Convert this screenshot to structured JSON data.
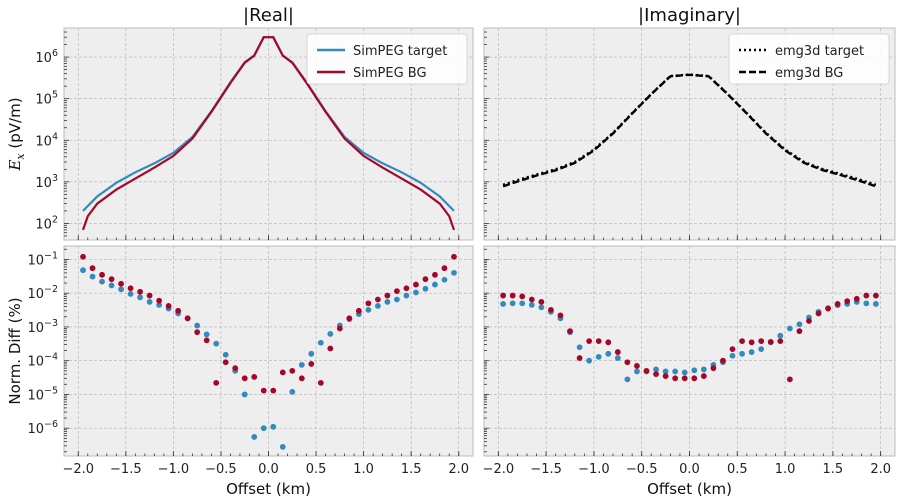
{
  "chart_data": [
    {
      "type": "line",
      "panel": "top-left",
      "title": "|Real|",
      "ylabel": "E_x (pV/m)",
      "xlabel": "",
      "yscale": "log",
      "xlim": [
        -2.15,
        2.15
      ],
      "ylim": [
        40,
        5000000
      ],
      "xticks": [
        -2.0,
        -1.5,
        -1.0,
        -0.5,
        0.0,
        0.5,
        1.0,
        1.5,
        2.0
      ],
      "yticks": [
        100,
        1000,
        10000,
        100000,
        1000000
      ],
      "ytick_labels": [
        "10^2",
        "10^3",
        "10^4",
        "10^5",
        "10^6"
      ],
      "grid": true,
      "legend": "top-right",
      "series": [
        {
          "name": "SimPEG target",
          "color": "#348abd",
          "style": "solid",
          "x": [
            -1.95,
            -1.8,
            -1.6,
            -1.4,
            -1.2,
            -1.0,
            -0.8,
            -0.6,
            -0.4,
            -0.25,
            -0.15,
            -0.05,
            0.0,
            0.05,
            0.15,
            0.25,
            0.4,
            0.6,
            0.8,
            1.0,
            1.2,
            1.4,
            1.6,
            1.8,
            1.95
          ],
          "y": [
            200,
            450,
            950,
            1700,
            2800,
            5000,
            12000,
            50000,
            250000,
            750000,
            1100000,
            3000000,
            3000000,
            3000000,
            1100000,
            750000,
            250000,
            50000,
            12000,
            5000,
            2800,
            1700,
            950,
            450,
            200
          ]
        },
        {
          "name": "SimPEG BG",
          "color": "#a60628",
          "style": "solid",
          "x": [
            -1.95,
            -1.9,
            -1.8,
            -1.6,
            -1.4,
            -1.2,
            -1.0,
            -0.8,
            -0.6,
            -0.4,
            -0.25,
            -0.15,
            -0.05,
            0.0,
            0.05,
            0.15,
            0.25,
            0.4,
            0.6,
            0.8,
            1.0,
            1.2,
            1.4,
            1.6,
            1.8,
            1.9,
            1.95
          ],
          "y": [
            70,
            150,
            300,
            650,
            1200,
            2200,
            4200,
            11000,
            48000,
            240000,
            730000,
            1080000,
            3000000,
            3000000,
            3000000,
            1080000,
            730000,
            240000,
            48000,
            11000,
            4200,
            2200,
            1200,
            650,
            300,
            150,
            70
          ]
        }
      ]
    },
    {
      "type": "line",
      "panel": "top-right",
      "title": "|Imaginary|",
      "ylabel": "",
      "xlabel": "",
      "yscale": "log",
      "xlim": [
        -2.15,
        2.15
      ],
      "ylim": [
        40,
        5000000
      ],
      "xticks": [
        -2.0,
        -1.5,
        -1.0,
        -0.5,
        0.0,
        0.5,
        1.0,
        1.5,
        2.0
      ],
      "grid": true,
      "legend": "top-right",
      "series": [
        {
          "name": "emg3d target",
          "color": "#000000",
          "style": "dotted",
          "x": [
            -1.95,
            -1.8,
            -1.6,
            -1.4,
            -1.2,
            -1.0,
            -0.8,
            -0.6,
            -0.4,
            -0.2,
            0.0,
            0.2,
            0.4,
            0.6,
            0.8,
            1.0,
            1.2,
            1.4,
            1.6,
            1.8,
            1.95
          ],
          "y": [
            850,
            1100,
            1500,
            2000,
            3000,
            6000,
            15000,
            45000,
            130000,
            350000,
            380000,
            350000,
            130000,
            45000,
            15000,
            6000,
            3000,
            2000,
            1500,
            1100,
            850
          ]
        },
        {
          "name": "emg3d BG",
          "color": "#000000",
          "style": "dashed",
          "x": [
            -1.95,
            -1.8,
            -1.6,
            -1.4,
            -1.2,
            -1.0,
            -0.8,
            -0.6,
            -0.4,
            -0.2,
            0.0,
            0.2,
            0.4,
            0.6,
            0.8,
            1.0,
            1.2,
            1.4,
            1.6,
            1.8,
            1.95
          ],
          "y": [
            780,
            1020,
            1420,
            1900,
            2850,
            5700,
            14500,
            44000,
            128000,
            345000,
            375000,
            345000,
            128000,
            44000,
            14500,
            5700,
            2850,
            1900,
            1420,
            1020,
            780
          ]
        }
      ]
    },
    {
      "type": "scatter",
      "panel": "bottom-left",
      "title": "",
      "ylabel": "Norm. Diff (%)",
      "xlabel": "Offset (km)",
      "yscale": "log",
      "xlim": [
        -2.15,
        2.15
      ],
      "ylim": [
        1.5e-07,
        0.25
      ],
      "xticks": [
        -2.0,
        -1.5,
        -1.0,
        -0.5,
        0.0,
        0.5,
        1.0,
        1.5,
        2.0
      ],
      "xtick_labels": [
        "−2.0",
        "−1.5",
        "−1.0",
        "−0.5",
        "0.0",
        "0.5",
        "1.0",
        "1.5",
        "2.0"
      ],
      "yticks": [
        1e-06,
        1e-05,
        0.0001,
        0.001,
        0.01,
        0.1
      ],
      "ytick_labels": [
        "10^-6",
        "10^-5",
        "10^-4",
        "10^-3",
        "10^-2",
        "10^-1"
      ],
      "grid": true,
      "series": [
        {
          "color": "#348abd",
          "x": [
            -1.95,
            -1.85,
            -1.75,
            -1.65,
            -1.55,
            -1.45,
            -1.35,
            -1.25,
            -1.15,
            -1.05,
            -0.95,
            -0.85,
            -0.75,
            -0.65,
            -0.55,
            -0.45,
            -0.35,
            -0.25,
            -0.15,
            -0.05,
            0.05,
            0.15,
            0.25,
            0.35,
            0.45,
            0.55,
            0.65,
            0.75,
            0.85,
            0.95,
            1.05,
            1.15,
            1.25,
            1.35,
            1.45,
            1.55,
            1.65,
            1.75,
            1.85,
            1.95
          ],
          "y": [
            0.048,
            0.031,
            0.022,
            0.017,
            0.013,
            0.0095,
            0.0075,
            0.0055,
            0.0045,
            0.0035,
            0.0025,
            0.0018,
            0.0011,
            0.0006,
            0.00032,
            0.00015,
            5e-05,
            1e-05,
            5.5e-07,
            1e-06,
            1.1e-06,
            2.8e-07,
            1.2e-05,
            7.5e-05,
            0.00016,
            0.00034,
            0.00062,
            0.0011,
            0.0017,
            0.0024,
            0.0032,
            0.0042,
            0.0055,
            0.0065,
            0.0085,
            0.0105,
            0.0135,
            0.018,
            0.025,
            0.04
          ]
        },
        {
          "color": "#a60628",
          "x": [
            -1.95,
            -1.85,
            -1.75,
            -1.65,
            -1.55,
            -1.45,
            -1.35,
            -1.25,
            -1.15,
            -1.05,
            -0.95,
            -0.85,
            -0.75,
            -0.65,
            -0.55,
            -0.45,
            -0.35,
            -0.25,
            -0.15,
            -0.05,
            0.05,
            0.15,
            0.25,
            0.35,
            0.45,
            0.55,
            0.65,
            0.75,
            0.85,
            0.95,
            1.05,
            1.15,
            1.25,
            1.35,
            1.45,
            1.55,
            1.65,
            1.75,
            1.85,
            1.95
          ],
          "y": [
            0.12,
            0.055,
            0.035,
            0.026,
            0.019,
            0.014,
            0.011,
            0.0085,
            0.006,
            0.0042,
            0.003,
            0.0018,
            0.0007,
            0.0004,
            2.2e-05,
            9e-05,
            6e-05,
            3e-05,
            3.3e-05,
            1.3e-05,
            1.3e-05,
            4.5e-05,
            5e-05,
            3e-05,
            8e-05,
            2.2e-05,
            0.00023,
            0.0009,
            0.0018,
            0.003,
            0.005,
            0.0065,
            0.0085,
            0.0115,
            0.014,
            0.018,
            0.026,
            0.035,
            0.055,
            0.12
          ]
        }
      ]
    },
    {
      "type": "scatter",
      "panel": "bottom-right",
      "title": "",
      "ylabel": "",
      "xlabel": "Offset (km)",
      "yscale": "log",
      "xlim": [
        -2.15,
        2.15
      ],
      "ylim": [
        1.5e-07,
        0.25
      ],
      "xticks": [
        -2.0,
        -1.5,
        -1.0,
        -0.5,
        0.0,
        0.5,
        1.0,
        1.5,
        2.0
      ],
      "xtick_labels": [
        "−2.0",
        "−1.5",
        "−1.0",
        "−0.5",
        "0.0",
        "0.5",
        "1.0",
        "1.5",
        "2.0"
      ],
      "grid": true,
      "series": [
        {
          "color": "#348abd",
          "x": [
            -1.95,
            -1.85,
            -1.75,
            -1.65,
            -1.55,
            -1.45,
            -1.35,
            -1.25,
            -1.15,
            -1.05,
            -0.95,
            -0.85,
            -0.75,
            -0.65,
            -0.55,
            -0.45,
            -0.35,
            -0.25,
            -0.15,
            -0.05,
            0.05,
            0.15,
            0.25,
            0.35,
            0.45,
            0.55,
            0.65,
            0.75,
            0.85,
            0.95,
            1.05,
            1.15,
            1.25,
            1.35,
            1.45,
            1.55,
            1.65,
            1.75,
            1.85,
            1.95
          ],
          "y": [
            0.0048,
            0.005,
            0.005,
            0.0045,
            0.0038,
            0.0028,
            0.0018,
            0.0007,
            0.00025,
            0.0001,
            0.00013,
            0.00016,
            0.00012,
            2.8e-05,
            4.8e-05,
            4.8e-05,
            5.5e-05,
            4.8e-05,
            4.8e-05,
            4.5e-05,
            5.2e-05,
            5.5e-05,
            7.5e-05,
            9e-05,
            0.00014,
            0.00016,
            0.00018,
            0.00022,
            0.00035,
            0.00055,
            0.0009,
            0.0012,
            0.0019,
            0.0028,
            0.0036,
            0.0044,
            0.0048,
            0.0055,
            0.005,
            0.0048
          ]
        },
        {
          "color": "#a60628",
          "x": [
            -1.95,
            -1.85,
            -1.75,
            -1.65,
            -1.55,
            -1.45,
            -1.35,
            -1.25,
            -1.15,
            -1.05,
            -0.95,
            -0.85,
            -0.75,
            -0.65,
            -0.55,
            -0.45,
            -0.35,
            -0.25,
            -0.15,
            -0.05,
            0.05,
            0.15,
            0.25,
            0.35,
            0.45,
            0.55,
            0.65,
            0.75,
            0.85,
            0.95,
            1.05,
            1.15,
            1.25,
            1.35,
            1.45,
            1.55,
            1.65,
            1.75,
            1.85,
            1.95
          ],
          "y": [
            0.0085,
            0.0085,
            0.008,
            0.0065,
            0.0055,
            0.0032,
            0.0022,
            0.00075,
            0.00012,
            0.00038,
            0.00038,
            0.00035,
            0.00018,
            9e-05,
            7e-05,
            5e-05,
            4e-05,
            3.5e-05,
            3e-05,
            3e-05,
            3e-05,
            3.5e-05,
            6e-05,
            0.0001,
            0.00022,
            0.00038,
            0.00035,
            0.00038,
            0.00036,
            0.00038,
            2.8e-05,
            0.00075,
            0.0015,
            0.0025,
            0.0035,
            0.0048,
            0.0058,
            0.0068,
            0.0085,
            0.0085
          ]
        }
      ]
    }
  ]
}
